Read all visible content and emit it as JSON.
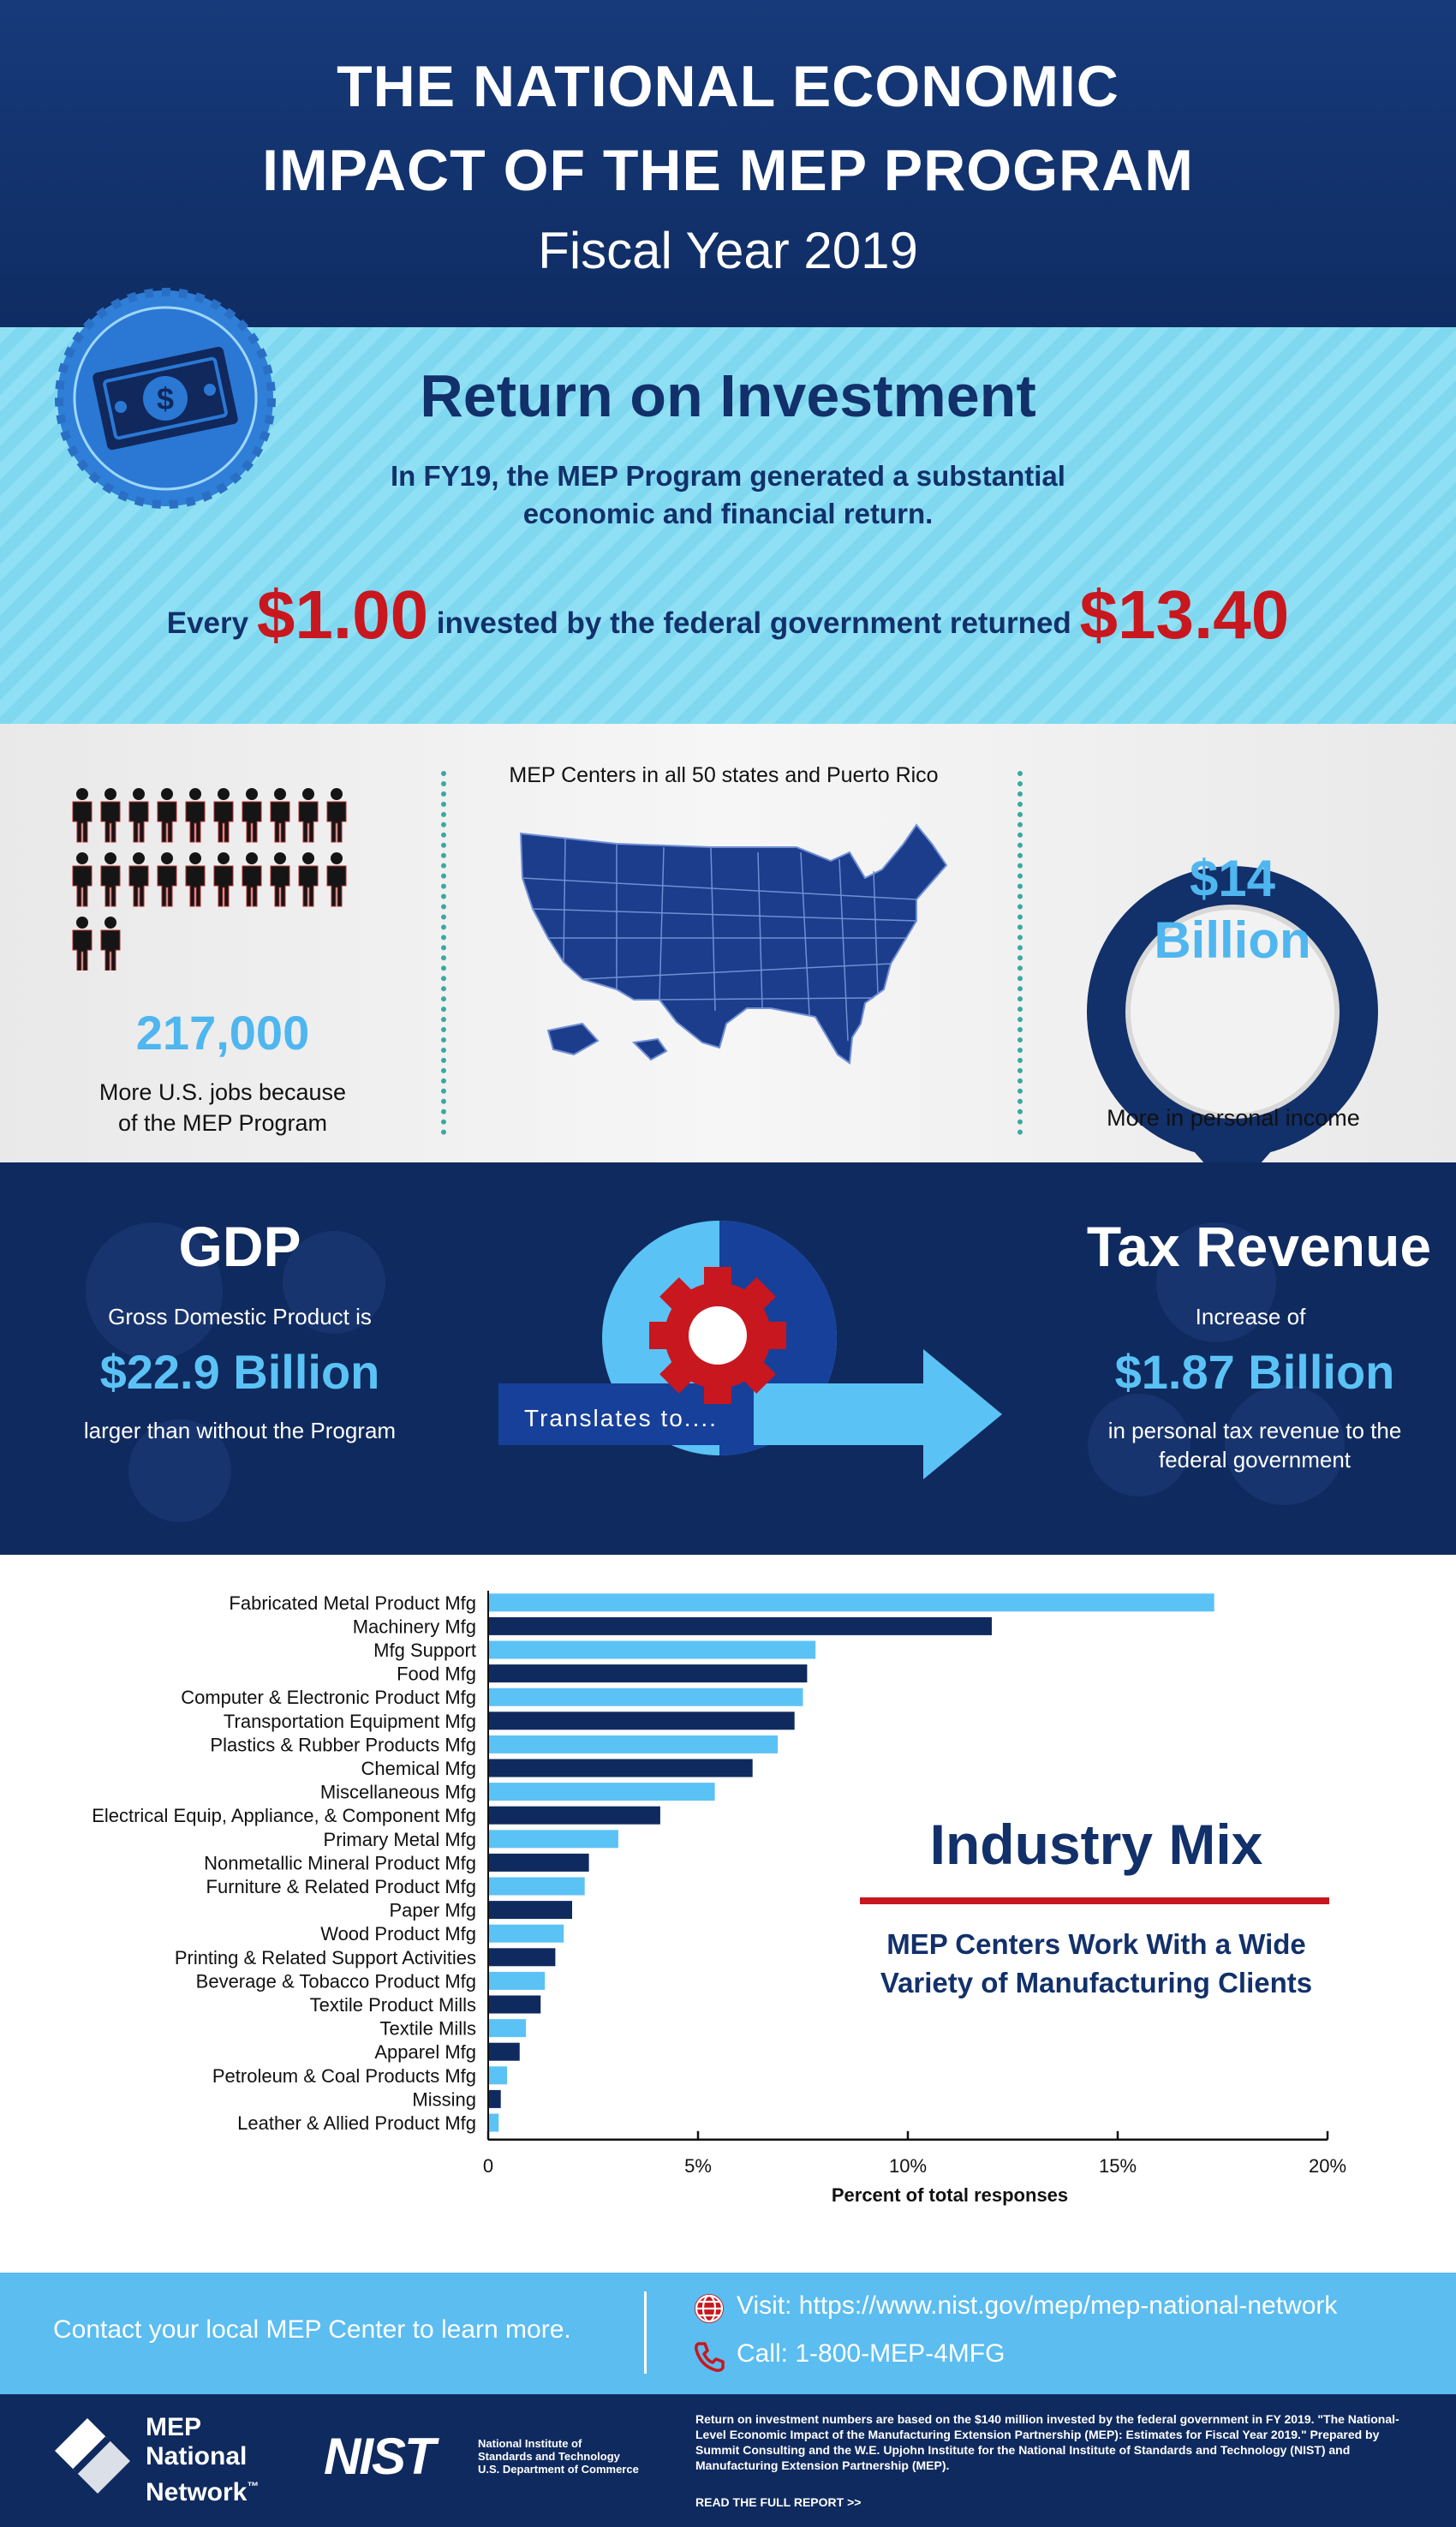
{
  "header": {
    "title_line1": "THE NATIONAL ECONOMIC",
    "title_line2": "IMPACT OF THE MEP PROGRAM",
    "subtitle": "Fiscal Year 2019"
  },
  "roi": {
    "badge_icon": "dollar-bill-icon",
    "heading": "Return on Investment",
    "sub_line1": "In FY19, the MEP Program generated a substantial",
    "sub_line2": "economic and financial return.",
    "every": "Every",
    "invested_amount": "$1.00",
    "middle": "invested by the federal government returned",
    "returned_amount": "$13.40"
  },
  "stats": {
    "jobs_value": "217,000",
    "jobs_text_1": "More U.S. jobs because",
    "jobs_text_2": "of the MEP Program",
    "jobs_icon": "people-icon",
    "map_caption": "MEP Centers in all 50 states and Puerto Rico",
    "map_icon": "us-map-icon",
    "income_value_1": "$14",
    "income_value_2": "Billion",
    "income_text": "More in personal income"
  },
  "gdp": {
    "heading": "GDP",
    "text_1": "Gross Domestic Product is",
    "value": "$22.9 Billion",
    "text_2": "larger than without the Program",
    "center_label": "Translates to....",
    "tax_heading": "Tax Revenue",
    "tax_text_1": "Increase of",
    "tax_value": "$1.87 Billion",
    "tax_text_2": "in personal tax revenue to the",
    "tax_text_3": "federal government"
  },
  "industry": {
    "heading": "Industry Mix",
    "sub_1": "MEP Centers Work With a Wide",
    "sub_2": "Variety of Manufacturing Clients"
  },
  "chart_data": {
    "type": "bar",
    "orientation": "horizontal",
    "xlabel": "Percent of total responses",
    "xlim": [
      0,
      20
    ],
    "x_ticks": [
      "0",
      "5%",
      "10%",
      "15%",
      "20%"
    ],
    "grid": false,
    "colors": [
      "#5bc2f5",
      "#0f2a5e"
    ],
    "categories": [
      "Fabricated Metal Product Mfg",
      "Machinery Mfg",
      "Mfg Support",
      "Food Mfg",
      "Computer & Electronic Product Mfg",
      "Transportation Equipment Mfg",
      "Plastics & Rubber Products Mfg",
      "Chemical Mfg",
      "Miscellaneous Mfg",
      "Electrical Equip, Appliance, & Component Mfg",
      "Primary Metal Mfg",
      "Nonmetallic Mineral Product Mfg",
      "Furniture & Related Product Mfg",
      "Paper Mfg",
      "Wood Product Mfg",
      "Printing & Related Support Activities",
      "Beverage & Tobacco Product Mfg",
      "Textile Product Mills",
      "Textile Mills",
      "Apparel Mfg",
      "Petroleum & Coal Products Mfg",
      "Missing",
      "Leather & Allied Product Mfg"
    ],
    "values": [
      17.3,
      12.0,
      7.8,
      7.6,
      7.5,
      7.3,
      6.9,
      6.3,
      5.4,
      4.1,
      3.1,
      2.4,
      2.3,
      2.0,
      1.8,
      1.6,
      1.35,
      1.25,
      0.9,
      0.75,
      0.45,
      0.3,
      0.25
    ]
  },
  "cta": {
    "contact": "Contact your local MEP Center to learn more.",
    "visit": "Visit: https://www.nist.gov/mep/mep-national-network",
    "call": "Call: 1-800-MEP-4MFG"
  },
  "footer": {
    "logo_1": "MEP",
    "logo_2": "National",
    "logo_3": "Network",
    "tm": "™",
    "nist": "NIST",
    "nist_sub_1": "National Institute of",
    "nist_sub_2": "Standards and Technology",
    "nist_sub_3": "U.S. Department of Commerce",
    "note": "Return on investment numbers are based on the $140 million invested by the federal government in FY 2019. \"The National-Level Economic Impact of the Manufacturing Extension Partnership (MEP): Estimates for Fiscal Year 2019.\" Prepared by Summit Consulting and the W.E. Upjohn Institute for the National Institute of Standards and Technology (NIST) and Manufacturing Extension Partnership (MEP).",
    "read_more": "READ THE FULL REPORT >>"
  }
}
